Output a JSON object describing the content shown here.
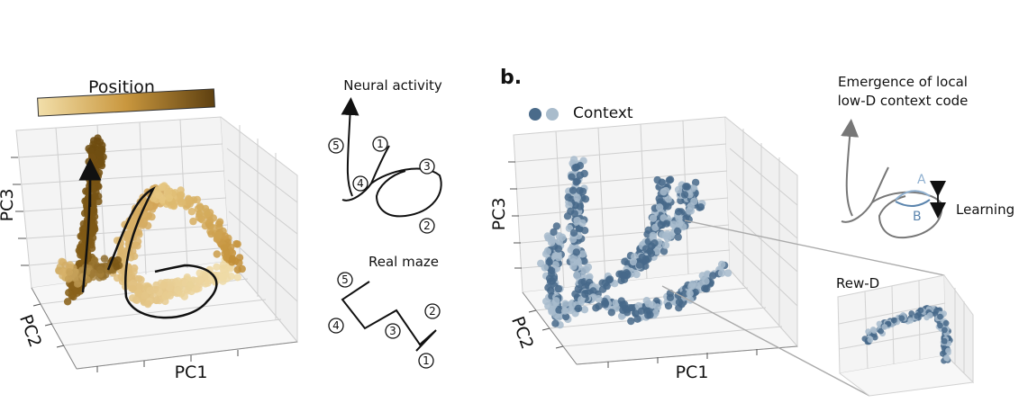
{
  "panel_a": {
    "colorbar_label": "Position",
    "colorbar_colors": [
      "#edd9a3",
      "#6b4a12"
    ],
    "axes": {
      "x": "PC1",
      "y": "PC2",
      "z": "PC3"
    },
    "schematic_neural": {
      "title": "Neural activity",
      "markers": [
        "5",
        "1",
        "3",
        "4",
        "2"
      ]
    },
    "schematic_maze": {
      "title": "Real maze",
      "markers": [
        "5",
        "4",
        "3",
        "2",
        "1"
      ]
    }
  },
  "panel_b": {
    "letter": "b.",
    "legend_label": "Context",
    "legend_colors": [
      "#4a6b8a",
      "#a9bccc"
    ],
    "axes": {
      "x": "PC1",
      "y": "PC2",
      "z": "PC3"
    },
    "emergence_title": [
      "Emergence of local",
      "low-D context code"
    ],
    "curve_labels": {
      "a": "A",
      "b": "B"
    },
    "learning_label": "Learning",
    "inset_title": "Rew-D"
  }
}
